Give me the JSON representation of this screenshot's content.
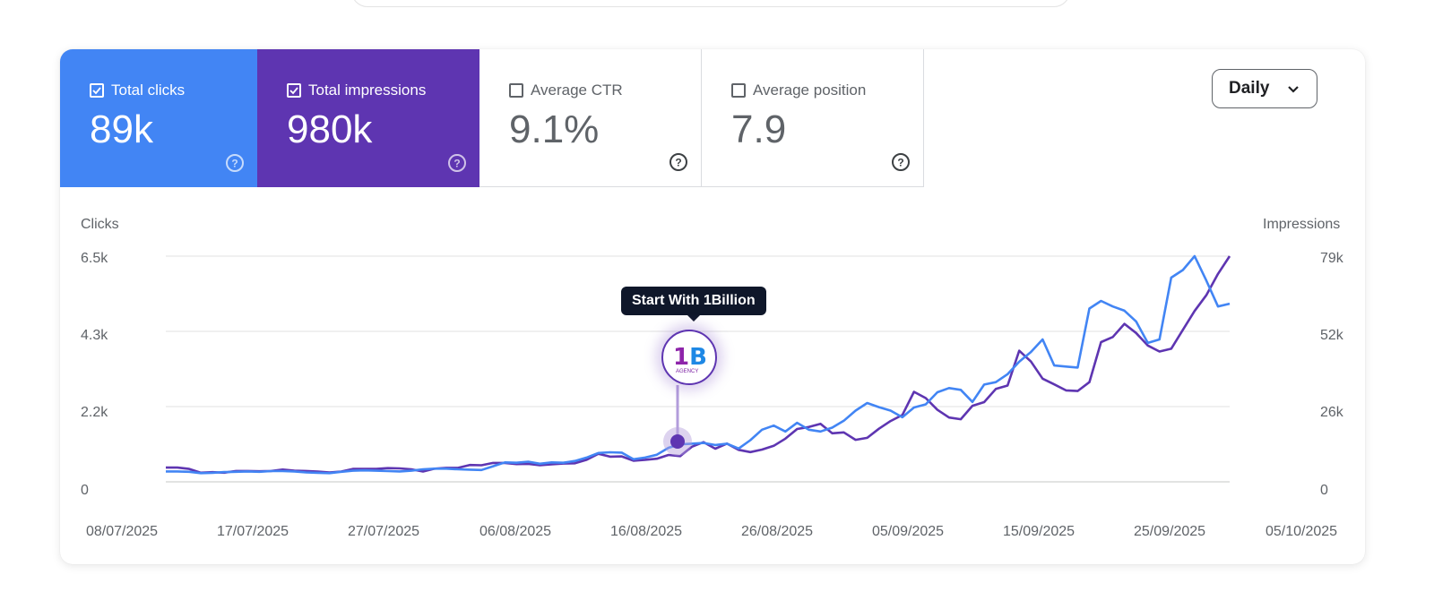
{
  "metrics": {
    "clicks": {
      "label": "Total clicks",
      "value": "89k",
      "checked": true,
      "color": "#4285f4"
    },
    "impressions": {
      "label": "Total impressions",
      "value": "980k",
      "checked": true,
      "color": "#5e35b1"
    },
    "ctr": {
      "label": "Average CTR",
      "value": "9.1%",
      "checked": false
    },
    "position": {
      "label": "Average position",
      "value": "7.9",
      "checked": false
    }
  },
  "period_dropdown": {
    "selected": "Daily"
  },
  "annotation": {
    "tooltip": "Start With 1Billion",
    "logo_text": "1B",
    "logo_subtext": "AGENCY",
    "date": "19/08/2025"
  },
  "chart_data": {
    "type": "line",
    "y_left_label": "Clicks",
    "y_right_label": "Impressions",
    "y_left_ticks": [
      "0",
      "2.2k",
      "4.3k",
      "6.5k"
    ],
    "y_right_ticks": [
      "0",
      "26k",
      "52k",
      "79k"
    ],
    "y_left_range": [
      0,
      6500
    ],
    "y_right_range": [
      0,
      79000
    ],
    "x_ticks": [
      "08/07/2025",
      "17/07/2025",
      "27/07/2025",
      "06/08/2025",
      "16/08/2025",
      "26/08/2025",
      "05/09/2025",
      "15/09/2025",
      "25/09/2025",
      "05/10/2025"
    ],
    "grid": true,
    "series": [
      {
        "name": "Clicks",
        "axis": "left",
        "color": "#4285f4",
        "values": [
          300,
          300,
          290,
          250,
          260,
          280,
          290,
          300,
          290,
          310,
          310,
          300,
          270,
          260,
          250,
          290,
          320,
          330,
          320,
          310,
          300,
          320,
          360,
          380,
          380,
          360,
          350,
          340,
          450,
          560,
          550,
          580,
          520,
          560,
          550,
          600,
          700,
          830,
          850,
          840,
          650,
          700,
          780,
          980,
          1080,
          1100,
          1120,
          1060,
          1100,
          960,
          1200,
          1500,
          1620,
          1450,
          1700,
          1500,
          1450,
          1560,
          1760,
          2050,
          2270,
          2150,
          2050,
          1860,
          2140,
          2230,
          2580,
          2700,
          2650,
          2300,
          2800,
          2870,
          3100,
          3460,
          3740,
          4100,
          3350,
          3320,
          3290,
          4990,
          5210,
          5050,
          4930,
          4620,
          4000,
          4100,
          5880,
          6100,
          6500,
          5800,
          5050,
          5130
        ]
      },
      {
        "name": "Impressions",
        "axis": "right",
        "color": "#5e35b1",
        "values": [
          5000,
          5000,
          4500,
          3200,
          3400,
          3200,
          3800,
          3800,
          3700,
          3800,
          4300,
          3900,
          3800,
          3600,
          3300,
          3600,
          4500,
          4500,
          4500,
          4800,
          4700,
          4400,
          3600,
          4600,
          4900,
          4900,
          5900,
          5800,
          6600,
          6600,
          6200,
          6300,
          5800,
          6100,
          6400,
          6500,
          7700,
          9800,
          8800,
          8900,
          7400,
          7700,
          8100,
          9400,
          9000,
          12300,
          13900,
          11600,
          13400,
          11200,
          10400,
          11300,
          12600,
          15100,
          18500,
          19200,
          20300,
          17000,
          17300,
          14700,
          15400,
          18600,
          21300,
          23400,
          31500,
          29300,
          25200,
          22500,
          21900,
          26600,
          27900,
          32500,
          33700,
          45900,
          42100,
          36100,
          34100,
          32000,
          31800,
          34900,
          48900,
          50700,
          55300,
          52100,
          47700,
          45600,
          46600,
          53200,
          59800,
          65300,
          72800,
          79000
        ]
      }
    ]
  }
}
